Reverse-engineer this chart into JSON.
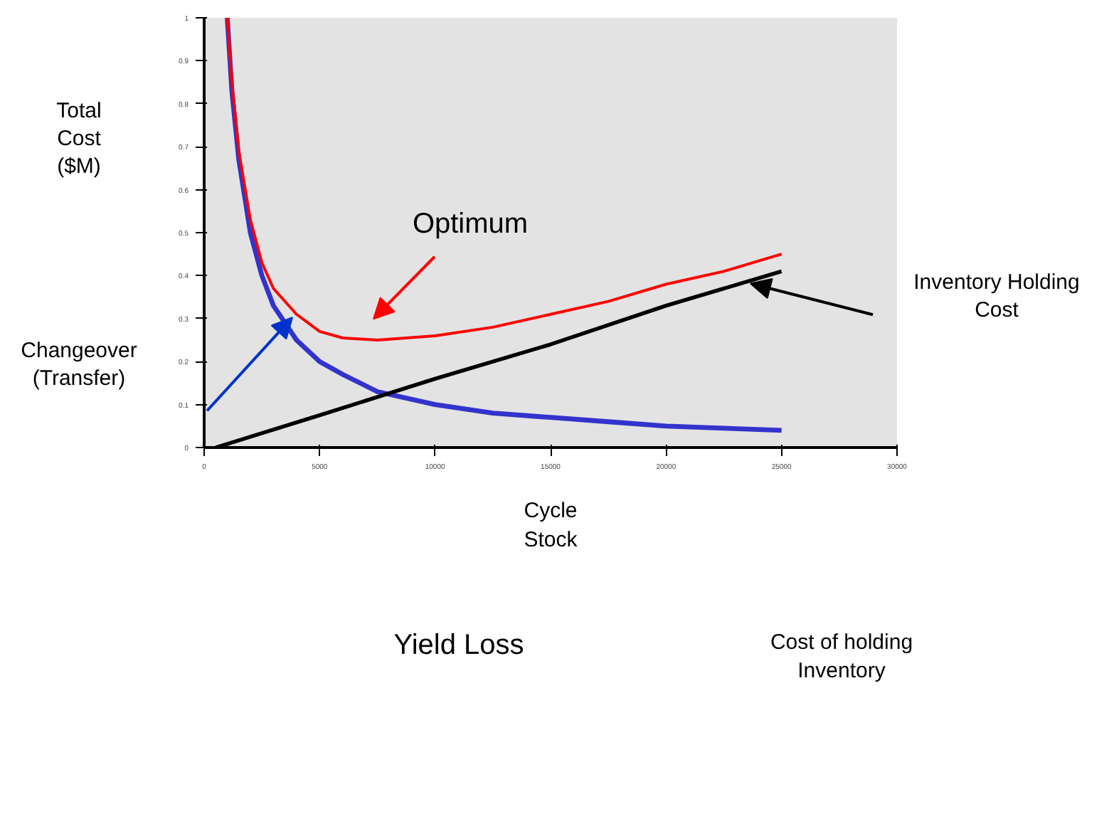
{
  "chart_data": {
    "type": "line",
    "xlabel": "Cycle\nStock",
    "ylabel": "Total\nCost\n($M)",
    "xlim": [
      0,
      30000
    ],
    "ylim": [
      0,
      1
    ],
    "xticks": [
      0,
      5000,
      10000,
      15000,
      20000,
      25000,
      30000
    ],
    "yticks": [
      0,
      0.1,
      0.2,
      0.3,
      0.4,
      0.5,
      0.6,
      0.7,
      0.8,
      0.9,
      1
    ],
    "marker": "none",
    "line_style": "solid",
    "series": [
      {
        "color": "#3333cc",
        "x": [
          1000,
          1200,
          1500,
          2000,
          2500,
          3000,
          4000,
          5000,
          6000,
          7500,
          10000,
          12500,
          15000,
          17500,
          20000,
          22500,
          25000
        ],
        "values": [
          1.0,
          0.83,
          0.67,
          0.5,
          0.4,
          0.33,
          0.25,
          0.2,
          0.17,
          0.13,
          0.1,
          0.08,
          0.07,
          0.06,
          0.05,
          0.045,
          0.04
        ]
      },
      {
        "color": "#000000",
        "x": [
          500,
          5000,
          10000,
          15000,
          20000,
          25000
        ],
        "values": [
          0.0,
          0.075,
          0.16,
          0.24,
          0.33,
          0.41
        ]
      },
      {
        "color": "#ff0000",
        "x": [
          1000,
          1200,
          1500,
          2000,
          2500,
          3000,
          4000,
          5000,
          6000,
          7500,
          10000,
          12500,
          15000,
          17500,
          20000,
          22500,
          25000
        ],
        "values": [
          1.0,
          0.85,
          0.69,
          0.53,
          0.43,
          0.37,
          0.31,
          0.27,
          0.255,
          0.25,
          0.26,
          0.28,
          0.31,
          0.34,
          0.38,
          0.41,
          0.45
        ]
      }
    ],
    "annotations": [
      "Optimum",
      "Changeover\n(Transfer)",
      "Inventory Holding\nCost",
      "Yield Loss",
      "Cost of holding\nInventory"
    ]
  }
}
